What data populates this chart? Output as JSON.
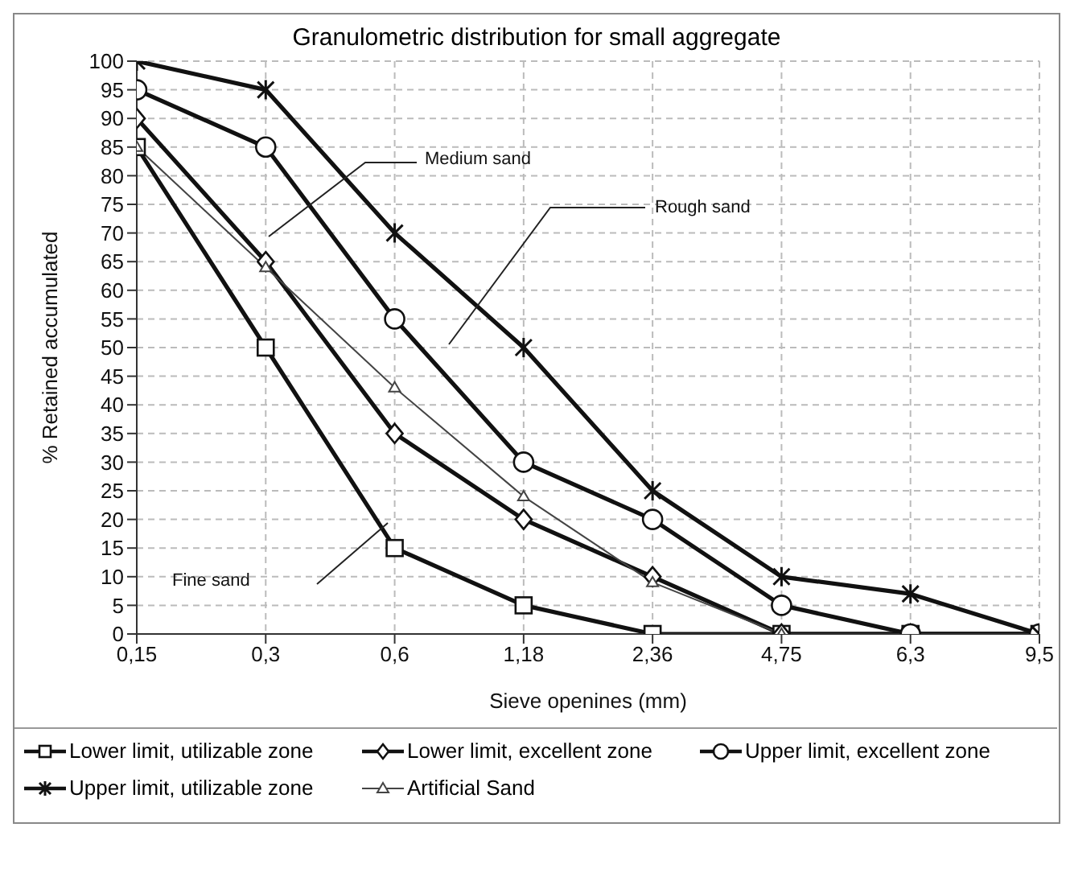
{
  "chart_data": {
    "type": "line",
    "title": "Granulometric distribution for small aggregate",
    "xlabel": "Sieve openines (mm)",
    "ylabel": "% Retained accumulated",
    "categories": [
      "0,15",
      "0,3",
      "0,6",
      "1,18",
      "2,36",
      "4,75",
      "6,3",
      "9,5"
    ],
    "ylim": [
      0,
      100
    ],
    "yticks": [
      0,
      5,
      10,
      15,
      20,
      25,
      30,
      35,
      40,
      45,
      50,
      55,
      60,
      65,
      70,
      75,
      80,
      85,
      90,
      95,
      100
    ],
    "grid": true,
    "legend": "bottom",
    "line_style": "solid",
    "annotations": [
      "Medium sand",
      "Rough sand",
      "Fine sand"
    ],
    "series": [
      {
        "name": "Lower limit, utilizable zone",
        "color": "#111111",
        "marker": "square",
        "values": [
          85,
          50,
          15,
          5,
          0,
          0,
          0,
          0
        ]
      },
      {
        "name": "Lower limit, excellent zone",
        "color": "#111111",
        "marker": "diamond",
        "values": [
          90,
          65,
          35,
          20,
          10,
          0,
          0,
          0
        ]
      },
      {
        "name": "Upper limit, excellent zone",
        "color": "#111111",
        "marker": "circle",
        "values": [
          95,
          85,
          55,
          30,
          20,
          5,
          0,
          0
        ]
      },
      {
        "name": "Upper limit, utilizable zone",
        "color": "#111111",
        "marker": "cross",
        "values": [
          100,
          95,
          70,
          50,
          25,
          10,
          7,
          0
        ]
      },
      {
        "name": "Artificial Sand",
        "color": "#444444",
        "marker": "triangle",
        "values": [
          85,
          64,
          43,
          24,
          9,
          0,
          null,
          null
        ]
      }
    ]
  }
}
